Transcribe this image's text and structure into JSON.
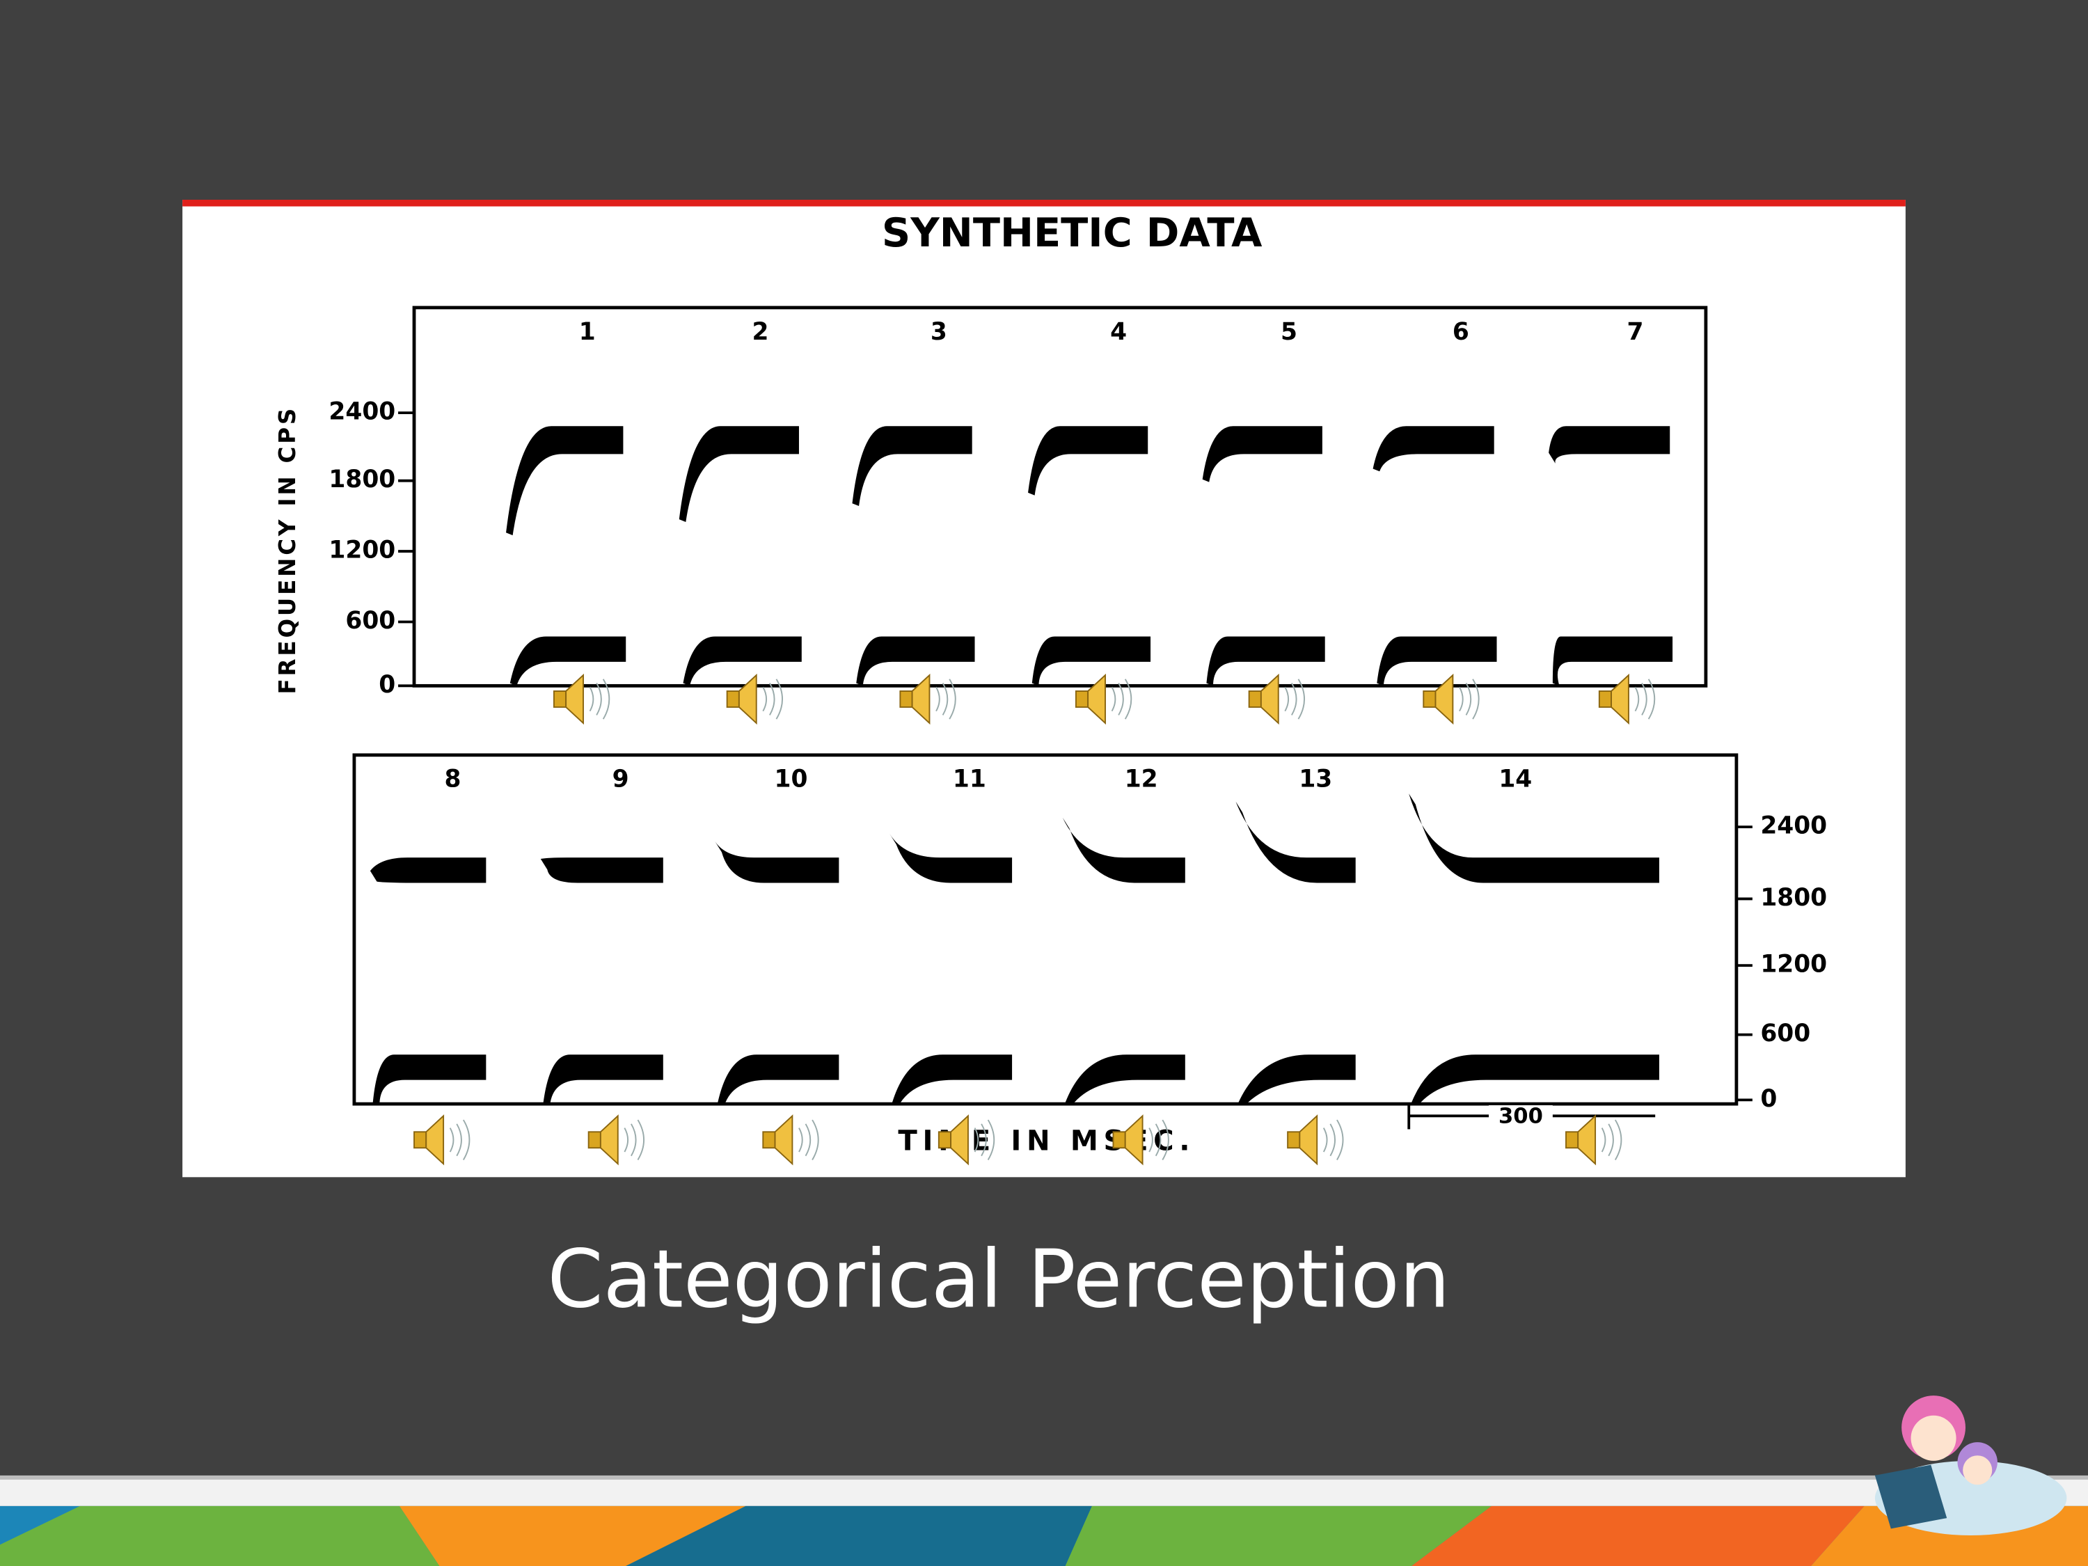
{
  "slide_title": "Categorical Perception",
  "figure": {
    "title": "SYNTHETIC DATA",
    "y_axis_label": "FREQUENCY IN CPS",
    "y_ticks": [
      "2400",
      "1800",
      "1200",
      "600",
      "0"
    ],
    "top_stimuli": [
      "1",
      "2",
      "3",
      "4",
      "5",
      "6",
      "7"
    ],
    "bottom_stimuli": [
      "8",
      "9",
      "10",
      "11",
      "12",
      "13",
      "14"
    ],
    "x_axis_label": "TIME IN MSEC.",
    "scale_label": "300"
  }
}
